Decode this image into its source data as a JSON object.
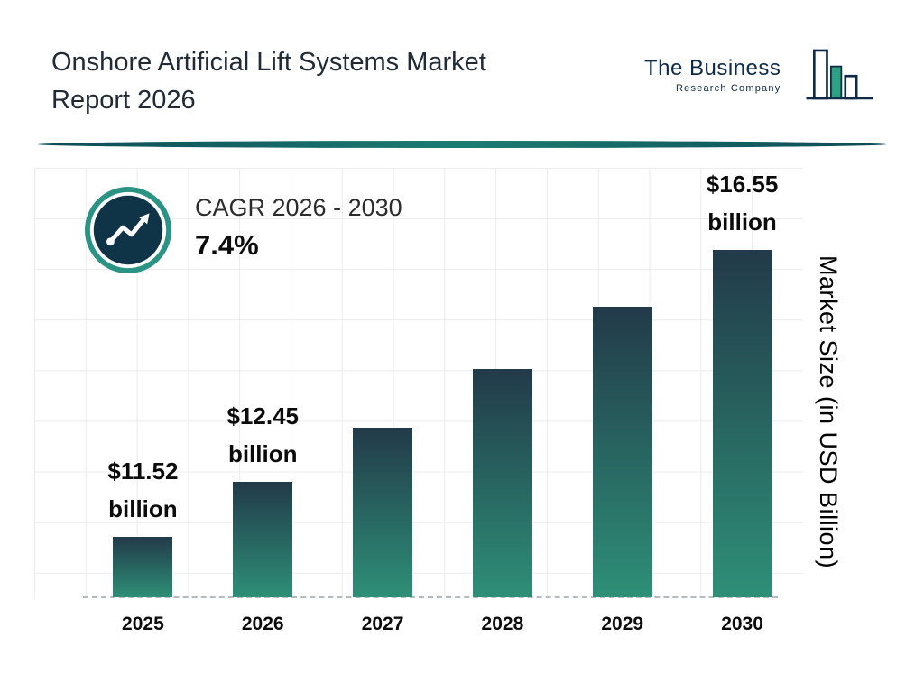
{
  "header": {
    "title_lines": [
      "Onshore Artificial Lift Systems Market",
      "Report 2026"
    ],
    "logo": {
      "name_line": "The Business",
      "sub_line": "Research Company"
    }
  },
  "cagr_badge": {
    "label": "CAGR 2026 - 2030",
    "value": "7.4%"
  },
  "chart_data": {
    "type": "bar",
    "title": "Onshore Artificial Lift Systems Market Report 2026",
    "categories": [
      "2025",
      "2026",
      "2027",
      "2028",
      "2029",
      "2030"
    ],
    "values": [
      11.52,
      12.45,
      13.37,
      14.36,
      15.42,
      16.55
    ],
    "value_labels": [
      [
        "$11.52",
        "billion"
      ],
      [
        "$12.45",
        "billion"
      ],
      null,
      null,
      null,
      [
        "$16.55",
        "billion"
      ]
    ],
    "xlabel": "",
    "ylabel": "Market Size (in USD Billion)",
    "ylim": [
      10.5,
      17.8
    ],
    "grid": true,
    "cagr": "7.4%",
    "bar_color_top": "#223a49",
    "bar_color_bottom": "#2e8f77",
    "accent_teal": "#2a9384",
    "badge_circle_color": "#0f3347",
    "divider_color": "#155a58"
  }
}
